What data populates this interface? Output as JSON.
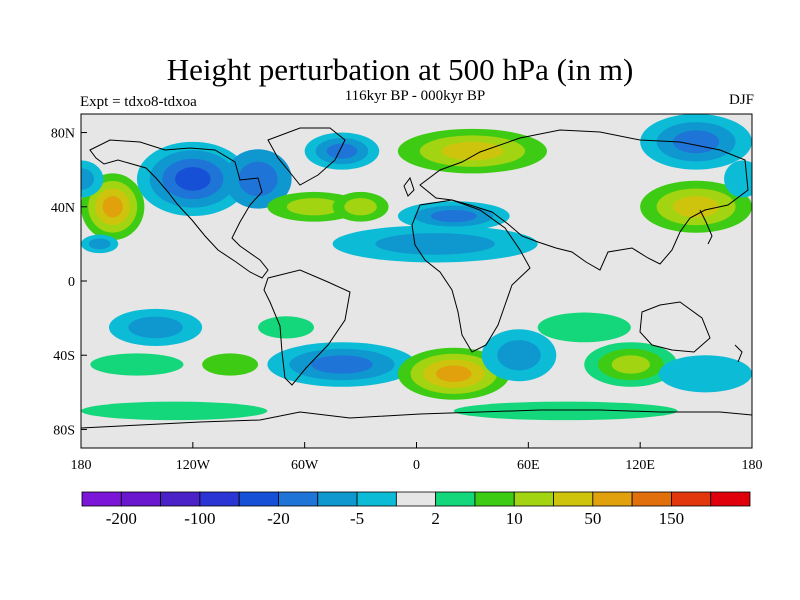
{
  "title": "Height perturbation at 500 hPa (in m)",
  "subtitle": "116kyr BP - 000kyr BP",
  "experiment": "Expt = tdxo8-tdxoa",
  "season": "DJF",
  "map": {
    "projection": "cylindrical equidistant",
    "lon_range": [
      -180,
      180
    ],
    "lat_range": [
      -90,
      90
    ],
    "background_color": "#e6e6e6",
    "lat_ticks": [
      {
        "value": 80,
        "label": "80N"
      },
      {
        "value": 40,
        "label": "40N"
      },
      {
        "value": 0,
        "label": "0"
      },
      {
        "value": -40,
        "label": "40S"
      },
      {
        "value": -80,
        "label": "80S"
      }
    ],
    "lon_ticks": [
      {
        "value": -180,
        "label": "180"
      },
      {
        "value": -120,
        "label": "120W"
      },
      {
        "value": -60,
        "label": "60W"
      },
      {
        "value": 0,
        "label": "0"
      },
      {
        "value": 60,
        "label": "60E"
      },
      {
        "value": 120,
        "label": "120E"
      },
      {
        "value": 180,
        "label": "180"
      }
    ]
  },
  "colorbar": {
    "colors": [
      "#7b16d8",
      "#6a17cf",
      "#4a22c8",
      "#2a35d4",
      "#1650d6",
      "#1f74d8",
      "#0f98d0",
      "#0cbcd6",
      "#e6e6e6",
      "#14d67a",
      "#3ecb14",
      "#a3d411",
      "#cfc40d",
      "#e0a10c",
      "#e06f0c",
      "#e2360c",
      "#e0000c"
    ],
    "labels": [
      {
        "boundary": 1,
        "text": "-200"
      },
      {
        "boundary": 3,
        "text": "-100"
      },
      {
        "boundary": 5,
        "text": "-20"
      },
      {
        "boundary": 7,
        "text": "-5"
      },
      {
        "boundary": 9,
        "text": "2"
      },
      {
        "boundary": 11,
        "text": "10"
      },
      {
        "boundary": 13,
        "text": "50"
      },
      {
        "boundary": 15,
        "text": "150"
      }
    ]
  },
  "anomaly_regions": [
    {
      "lon": -163,
      "lat": 40,
      "rlon": 17,
      "rlat": 18,
      "levels": [
        10,
        11,
        12,
        13
      ]
    },
    {
      "lon": -120,
      "lat": 55,
      "rlon": 30,
      "rlat": 20,
      "levels": [
        7,
        6,
        5,
        4
      ]
    },
    {
      "lon": -85,
      "lat": 55,
      "rlon": 18,
      "rlat": 16,
      "levels": [
        6,
        5
      ]
    },
    {
      "lon": -55,
      "lat": 40,
      "rlon": 25,
      "rlat": 8,
      "levels": [
        10,
        11
      ]
    },
    {
      "lon": -30,
      "lat": 40,
      "rlon": 15,
      "rlat": 8,
      "levels": [
        10,
        11
      ]
    },
    {
      "lon": -40,
      "lat": 70,
      "rlon": 20,
      "rlat": 10,
      "levels": [
        7,
        6,
        5
      ]
    },
    {
      "lon": 10,
      "lat": 20,
      "rlon": 55,
      "rlat": 10,
      "levels": [
        7,
        6
      ]
    },
    {
      "lon": 20,
      "lat": 35,
      "rlon": 30,
      "rlat": 8,
      "levels": [
        7,
        6,
        5
      ]
    },
    {
      "lon": 30,
      "lat": 70,
      "rlon": 40,
      "rlat": 12,
      "levels": [
        10,
        11,
        12
      ]
    },
    {
      "lon": 150,
      "lat": 75,
      "rlon": 30,
      "rlat": 15,
      "levels": [
        7,
        6,
        5
      ]
    },
    {
      "lon": 150,
      "lat": 40,
      "rlon": 30,
      "rlat": 14,
      "levels": [
        10,
        11,
        12
      ]
    },
    {
      "lon": -170,
      "lat": 20,
      "rlon": 10,
      "rlat": 5,
      "levels": [
        7,
        6
      ]
    },
    {
      "lon": -140,
      "lat": -25,
      "rlon": 25,
      "rlat": 10,
      "levels": [
        7,
        6
      ]
    },
    {
      "lon": -150,
      "lat": -45,
      "rlon": 25,
      "rlat": 6,
      "levels": [
        9
      ]
    },
    {
      "lon": -100,
      "lat": -45,
      "rlon": 15,
      "rlat": 6,
      "levels": [
        10
      ]
    },
    {
      "lon": -40,
      "lat": -45,
      "rlon": 40,
      "rlat": 12,
      "levels": [
        7,
        6,
        5
      ]
    },
    {
      "lon": -70,
      "lat": -25,
      "rlon": 15,
      "rlat": 6,
      "levels": [
        9
      ]
    },
    {
      "lon": 20,
      "lat": -50,
      "rlon": 30,
      "rlat": 14,
      "levels": [
        10,
        11,
        12,
        13
      ]
    },
    {
      "lon": 55,
      "lat": -40,
      "rlon": 20,
      "rlat": 14,
      "levels": [
        7,
        6
      ]
    },
    {
      "lon": 90,
      "lat": -25,
      "rlon": 25,
      "rlat": 8,
      "levels": [
        9
      ]
    },
    {
      "lon": 115,
      "lat": -45,
      "rlon": 25,
      "rlat": 12,
      "levels": [
        9,
        10,
        11
      ]
    },
    {
      "lon": 155,
      "lat": -50,
      "rlon": 25,
      "rlat": 10,
      "levels": [
        7
      ]
    },
    {
      "lon": -130,
      "lat": -70,
      "rlon": 50,
      "rlat": 5,
      "levels": [
        9
      ]
    },
    {
      "lon": 80,
      "lat": -70,
      "rlon": 60,
      "rlat": 5,
      "levels": [
        9
      ]
    },
    {
      "lon": -180,
      "lat": 55,
      "rlon": 12,
      "rlat": 10,
      "levels": [
        7,
        6
      ]
    },
    {
      "lon": 175,
      "lat": 55,
      "rlon": 10,
      "rlat": 10,
      "levels": [
        7
      ]
    }
  ]
}
